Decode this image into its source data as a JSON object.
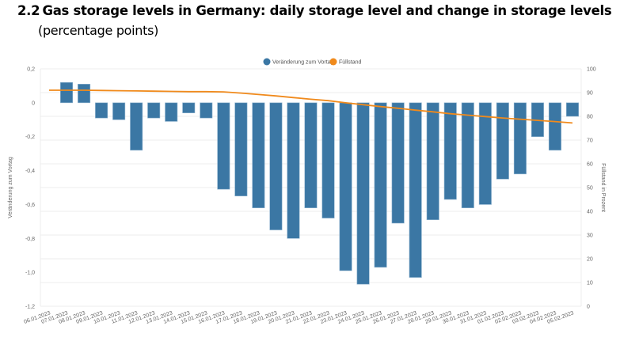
{
  "header": {
    "number": "2.2",
    "title": "Gas storage levels in Germany: daily storage level and change in storage levels",
    "subtitle": "(percentage points)"
  },
  "colors": {
    "bar": "#3b77a4",
    "line": "#f08a1c",
    "grid": "#ececec"
  },
  "chart_data": {
    "type": "bar",
    "combo": "bar+line",
    "title": "Gas storage levels in Germany: daily storage level and change in storage levels",
    "subtitle": "(percentage points)",
    "xlabel": "",
    "ylabel": "Veränderung zum Vortag",
    "y2label": "Füllstand in Prozent",
    "ylim": [
      -1.2,
      0.2
    ],
    "y2lim": [
      0,
      100
    ],
    "yticks": [
      "0,2",
      "0",
      "-0,2",
      "-0,4",
      "-0,6",
      "-0,8",
      "-1,0",
      "-1,2"
    ],
    "ytick_values": [
      0.2,
      0,
      -0.2,
      -0.4,
      -0.6,
      -0.8,
      -1.0,
      -1.2
    ],
    "y2ticks": [
      "100",
      "90",
      "80",
      "70",
      "60",
      "50",
      "40",
      "30",
      "20",
      "10",
      "0"
    ],
    "y2tick_values": [
      100,
      90,
      80,
      70,
      60,
      50,
      40,
      30,
      20,
      10,
      0
    ],
    "grid": true,
    "legend_position": "top-center",
    "categories": [
      "06.01.2023",
      "07.01.2023",
      "08.01.2023",
      "09.01.2023",
      "10.01.2023",
      "11.01.2023",
      "12.01.2023",
      "13.01.2023",
      "14.01.2023",
      "15.01.2023",
      "16.01.2023",
      "17.01.2023",
      "18.01.2023",
      "19.01.2023",
      "20.01.2023",
      "21.01.2023",
      "22.01.2023",
      "23.01.2023",
      "24.01.2023",
      "25.01.2023",
      "26.01.2023",
      "27.01.2023",
      "28.01.2023",
      "29.01.2023",
      "30.01.2023",
      "31.01.2023",
      "01.02.2023",
      "02.02.2023",
      "03.02.2023",
      "04.02.2023",
      "05.02.2023"
    ],
    "series": [
      {
        "name": "Veränderung zum Vortag",
        "type": "bar",
        "axis": "left",
        "values": [
          null,
          0.12,
          0.11,
          -0.09,
          -0.1,
          -0.28,
          -0.09,
          -0.11,
          -0.06,
          -0.09,
          -0.51,
          -0.55,
          -0.62,
          -0.75,
          -0.8,
          -0.62,
          -0.68,
          -0.99,
          -1.07,
          -0.97,
          -0.71,
          -1.03,
          -0.69,
          -0.57,
          -0.62,
          -0.6,
          -0.45,
          -0.42,
          -0.2,
          -0.28,
          -0.08
        ]
      },
      {
        "name": "Füllstand",
        "type": "line",
        "axis": "right",
        "values": [
          91.0,
          91.0,
          91.0,
          90.9,
          90.8,
          90.7,
          90.6,
          90.5,
          90.4,
          90.4,
          90.3,
          89.8,
          89.2,
          88.6,
          87.9,
          87.2,
          86.6,
          85.7,
          84.9,
          84.1,
          83.4,
          82.6,
          81.9,
          81.1,
          80.5,
          79.9,
          79.3,
          78.8,
          78.3,
          77.8,
          77.2
        ]
      }
    ]
  }
}
